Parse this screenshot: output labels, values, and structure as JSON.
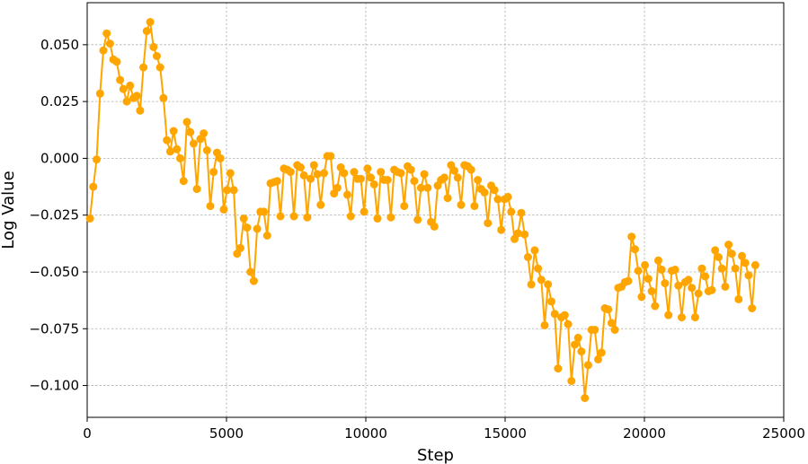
{
  "chart_data": {
    "type": "line",
    "xlabel": "Step",
    "ylabel": "Log Value",
    "xlim": [
      0,
      25000
    ],
    "ylim": [
      -0.114,
      0.0685
    ],
    "xticks": [
      0,
      5000,
      10000,
      15000,
      20000,
      25000
    ],
    "yticks": [
      -0.1,
      -0.075,
      -0.05,
      -0.025,
      0.0,
      0.025,
      0.05
    ],
    "grid": true,
    "color": "#FFA500",
    "series": [
      {
        "x": [
          100,
          220,
          340,
          460,
          580,
          700,
          820,
          940,
          1060,
          1180,
          1300,
          1420,
          1540,
          1660,
          1780,
          1900,
          2020,
          2140,
          2260,
          2380,
          2500,
          2620,
          2740,
          2860,
          2980,
          3100,
          3220,
          3340,
          3460,
          3580,
          3700,
          3820,
          3940,
          4060,
          4180,
          4300,
          4420,
          4540,
          4660,
          4780,
          4900,
          5020,
          5140,
          5260,
          5380,
          5500,
          5620,
          5740,
          5860,
          5980,
          6100,
          6220,
          6340,
          6460,
          6580,
          6700,
          6820,
          6940,
          7060,
          7180,
          7300,
          7420,
          7540,
          7660,
          7780,
          7900,
          8020,
          8140,
          8260,
          8380,
          8500,
          8620,
          8740,
          8860,
          8980,
          9100,
          9220,
          9340,
          9460,
          9580,
          9700,
          9820,
          9940,
          10060,
          10180,
          10300,
          10420,
          10540,
          10660,
          10780,
          10900,
          11020,
          11140,
          11260,
          11380,
          11500,
          11620,
          11740,
          11860,
          11980,
          12100,
          12220,
          12340,
          12460,
          12580,
          12700,
          12820,
          12940,
          13060,
          13180,
          13300,
          13420,
          13540,
          13660,
          13780,
          13900,
          14020,
          14140,
          14260,
          14380,
          14500,
          14620,
          14740,
          14860,
          14980,
          15100,
          15220,
          15340,
          15460,
          15580,
          15700,
          15820,
          15940,
          16060,
          16180,
          16300,
          16420,
          16540,
          16660,
          16780,
          16900,
          17020,
          17140,
          17260,
          17380,
          17500,
          17620,
          17740,
          17860,
          17980,
          18100,
          18220,
          18340,
          18460,
          18580,
          18700,
          18820,
          18940,
          19060,
          19180,
          19300,
          19420,
          19540,
          19660,
          19780,
          19900,
          20020,
          20140,
          20260,
          20380,
          20500,
          20620,
          20740,
          20860,
          20980,
          21100,
          21220,
          21340,
          21460,
          21580,
          21700,
          21820,
          21940,
          22060,
          22180,
          22300,
          22420,
          22540,
          22660,
          22780,
          22900,
          23020,
          23140,
          23260,
          23380,
          23500,
          23620,
          23740,
          23860,
          23980
        ],
        "y": [
          -0.0265,
          -0.0125,
          -0.0005,
          0.0285,
          0.0475,
          0.055,
          0.0505,
          0.0435,
          0.0425,
          0.0345,
          0.0305,
          0.025,
          0.032,
          0.0265,
          0.0275,
          0.021,
          0.04,
          0.056,
          0.06,
          0.049,
          0.045,
          0.04,
          0.0265,
          0.008,
          0.003,
          0.012,
          0.004,
          0.0,
          -0.01,
          0.016,
          0.0115,
          0.0065,
          -0.0135,
          0.0085,
          0.011,
          0.0035,
          -0.021,
          -0.006,
          0.0025,
          0.0,
          -0.0225,
          -0.014,
          -0.0065,
          -0.014,
          -0.042,
          -0.0395,
          -0.0265,
          -0.0305,
          -0.05,
          -0.054,
          -0.031,
          -0.0235,
          -0.0235,
          -0.034,
          -0.011,
          -0.0105,
          -0.01,
          -0.0255,
          -0.0045,
          -0.005,
          -0.006,
          -0.0255,
          -0.003,
          -0.004,
          -0.0075,
          -0.026,
          -0.009,
          -0.003,
          -0.007,
          -0.0205,
          -0.0065,
          0.001,
          0.001,
          -0.0155,
          -0.013,
          -0.004,
          -0.0065,
          -0.016,
          -0.0255,
          -0.006,
          -0.009,
          -0.009,
          -0.0235,
          -0.0045,
          -0.0085,
          -0.0115,
          -0.0265,
          -0.006,
          -0.0095,
          -0.0095,
          -0.026,
          -0.005,
          -0.006,
          -0.0065,
          -0.021,
          -0.0035,
          -0.005,
          -0.01,
          -0.027,
          -0.013,
          -0.007,
          -0.013,
          -0.028,
          -0.03,
          -0.012,
          -0.0095,
          -0.0085,
          -0.0175,
          -0.003,
          -0.0055,
          -0.0085,
          -0.0205,
          -0.003,
          -0.0035,
          -0.005,
          -0.021,
          -0.0095,
          -0.0135,
          -0.015,
          -0.0285,
          -0.012,
          -0.014,
          -0.018,
          -0.0315,
          -0.018,
          -0.017,
          -0.0235,
          -0.0355,
          -0.033,
          -0.024,
          -0.0335,
          -0.0435,
          -0.0555,
          -0.0405,
          -0.0485,
          -0.0535,
          -0.0735,
          -0.0555,
          -0.063,
          -0.0685,
          -0.0925,
          -0.07,
          -0.069,
          -0.073,
          -0.098,
          -0.082,
          -0.079,
          -0.085,
          -0.1055,
          -0.091,
          -0.0755,
          -0.0755,
          -0.0885,
          -0.0855,
          -0.066,
          -0.0665,
          -0.0725,
          -0.0755,
          -0.057,
          -0.0565,
          -0.0545,
          -0.054,
          -0.0345,
          -0.04,
          -0.0495,
          -0.061,
          -0.047,
          -0.053,
          -0.0585,
          -0.065,
          -0.045,
          -0.049,
          -0.055,
          -0.069,
          -0.0495,
          -0.049,
          -0.056,
          -0.07,
          -0.0545,
          -0.0535,
          -0.057,
          -0.07,
          -0.0595,
          -0.0485,
          -0.052,
          -0.0585,
          -0.058,
          -0.0405,
          -0.0435,
          -0.0485,
          -0.0565,
          -0.038,
          -0.042,
          -0.0485,
          -0.062,
          -0.043,
          -0.046,
          -0.0515,
          -0.066,
          -0.047
        ]
      }
    ]
  }
}
